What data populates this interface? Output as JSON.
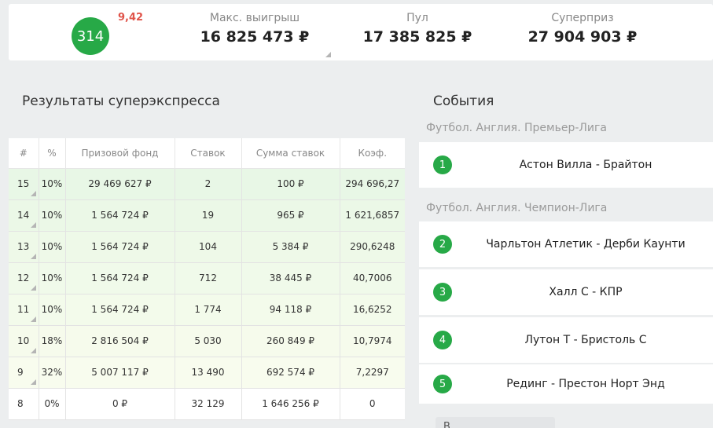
{
  "header": {
    "badge_value": "314",
    "badge_delta": "9,42",
    "max_win_label": "Макс. выигрыш",
    "max_win_value": "16 825 473 ₽",
    "pool_label": "Пул",
    "pool_value": "17 385 825 ₽",
    "superprize_label": "Суперприз",
    "superprize_value": "27 904 903 ₽"
  },
  "results": {
    "title": "Результаты суперэкспресса",
    "columns": [
      "#",
      "%",
      "Призовой фонд",
      "Ставок",
      "Сумма ставок",
      "Коэф."
    ],
    "rows": [
      {
        "n": "15",
        "pct": "10%",
        "fund": "29 469 627 ₽",
        "bets": "2",
        "sum": "100 ₽",
        "coef": "294 696,27",
        "bg": "#e8f7e6"
      },
      {
        "n": "14",
        "pct": "10%",
        "fund": "1 564 724 ₽",
        "bets": "19",
        "sum": "965 ₽",
        "coef": "1 621,6857",
        "bg": "#ebf8e7"
      },
      {
        "n": "13",
        "pct": "10%",
        "fund": "1 564 724 ₽",
        "bets": "104",
        "sum": "5 384 ₽",
        "coef": "290,6248",
        "bg": "#eef9e8"
      },
      {
        "n": "12",
        "pct": "10%",
        "fund": "1 564 724 ₽",
        "bets": "712",
        "sum": "38 445 ₽",
        "coef": "40,7006",
        "bg": "#f0faea"
      },
      {
        "n": "11",
        "pct": "10%",
        "fund": "1 564 724 ₽",
        "bets": "1 774",
        "sum": "94 118 ₽",
        "coef": "16,6252",
        "bg": "#f3fbeb"
      },
      {
        "n": "10",
        "pct": "18%",
        "fund": "2 816 504 ₽",
        "bets": "5 030",
        "sum": "260 849 ₽",
        "coef": "10,7974",
        "bg": "#f6fbec"
      },
      {
        "n": "9",
        "pct": "32%",
        "fund": "5 007 117 ₽",
        "bets": "13 490",
        "sum": "692 574 ₽",
        "coef": "7,2297",
        "bg": "#f8fcee"
      },
      {
        "n": "8",
        "pct": "0%",
        "fund": "0 ₽",
        "bets": "32 129",
        "sum": "1 646 256 ₽",
        "coef": "0",
        "bg": "#ffffff"
      }
    ]
  },
  "events": {
    "title": "События",
    "league_1": "Футбол. Англия. Премьер-Лига",
    "league_2": "Футбол. Англия. Чемпион-Лига",
    "items": [
      {
        "num": "1",
        "name": "Астон Вилла - Брайтон"
      },
      {
        "num": "2",
        "name": "Чарльтон Атлетик - Дерби Каунти"
      },
      {
        "num": "3",
        "name": "Халл С - КПР"
      },
      {
        "num": "4",
        "name": "Лутон Т - Бристоль С"
      },
      {
        "num": "5",
        "name": "Рединг - Престон Норт Энд"
      }
    ],
    "more_label": "В"
  },
  "colors": {
    "accent_green": "#27a947",
    "delta_red": "#e0544a"
  }
}
